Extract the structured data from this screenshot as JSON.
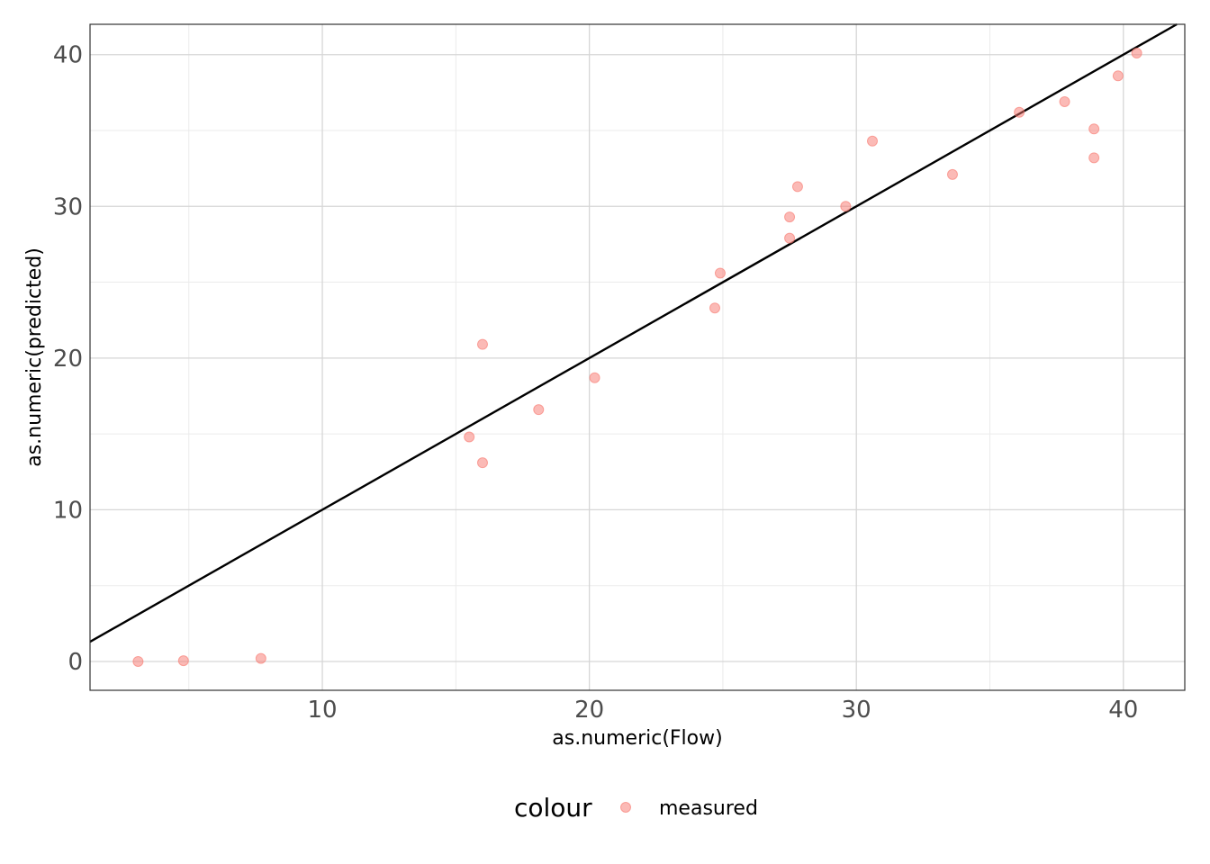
{
  "chart_data": {
    "type": "scatter",
    "xlabel": "as.numeric(Flow)",
    "ylabel": "as.numeric(predicted)",
    "xlim": [
      1.3,
      42.3
    ],
    "ylim": [
      -1.9,
      42.0
    ],
    "x_ticks": [
      10,
      20,
      30,
      40
    ],
    "y_ticks": [
      0,
      10,
      20,
      30,
      40
    ],
    "grid": true,
    "legend": {
      "position": "bottom",
      "title": "colour",
      "entries": [
        {
          "label": "measured",
          "color": "#F8766D"
        }
      ]
    },
    "reference_line": {
      "intercept": 0,
      "slope": 1
    },
    "series": [
      {
        "name": "measured",
        "color": "#F8766D",
        "points": [
          [
            3.1,
            0.0
          ],
          [
            4.8,
            0.05
          ],
          [
            7.7,
            0.2
          ],
          [
            15.5,
            14.8
          ],
          [
            16.0,
            13.1
          ],
          [
            16.0,
            20.9
          ],
          [
            18.1,
            16.6
          ],
          [
            20.2,
            18.7
          ],
          [
            24.7,
            23.3
          ],
          [
            24.9,
            25.6
          ],
          [
            27.5,
            27.9
          ],
          [
            27.5,
            29.3
          ],
          [
            27.8,
            31.3
          ],
          [
            29.6,
            30.0
          ],
          [
            30.6,
            34.3
          ],
          [
            33.6,
            32.1
          ],
          [
            36.1,
            36.2
          ],
          [
            37.8,
            36.9
          ],
          [
            38.9,
            35.1
          ],
          [
            38.9,
            33.2
          ],
          [
            39.8,
            38.6
          ],
          [
            40.5,
            40.1
          ]
        ]
      }
    ]
  }
}
